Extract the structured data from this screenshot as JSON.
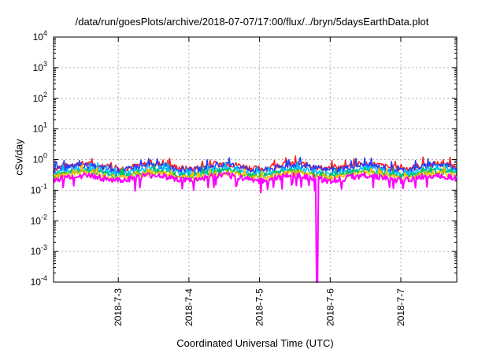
{
  "chart_data": {
    "type": "area",
    "title": "/data/run/goesPlots/archive/2018-07-07/17:00/flux/../bryn/5daysEarthData.plot",
    "xlabel": "Coordinated Universal Time (UTC)",
    "ylabel": "cSv/day",
    "yscale": "log",
    "ylim": [
      0.0001,
      10000
    ],
    "xlim": [
      "2018-07-02 02:00",
      "2018-07-07 19:00"
    ],
    "grid": true,
    "yticks": [
      {
        "base": "10",
        "exp": "-4"
      },
      {
        "base": "10",
        "exp": "-3"
      },
      {
        "base": "10",
        "exp": "-2"
      },
      {
        "base": "10",
        "exp": "-1"
      },
      {
        "base": "10",
        "exp": "0"
      },
      {
        "base": "10",
        "exp": "1"
      },
      {
        "base": "10",
        "exp": "2"
      },
      {
        "base": "10",
        "exp": "3"
      },
      {
        "base": "10",
        "exp": "4"
      }
    ],
    "xticks": [
      "2018-7-3",
      "2018-7-4",
      "2018-7-5",
      "2018-7-6",
      "2018-7-7"
    ],
    "series": [
      {
        "color": "#ff2020",
        "level": 0.62
      },
      {
        "color": "#2040ff",
        "level": 0.55
      },
      {
        "color": "#00c0ff",
        "level": 0.42
      },
      {
        "color": "#00c060",
        "level": 0.36
      },
      {
        "color": "#ffc000",
        "level": 0.31
      },
      {
        "color": "#ff00ff",
        "level": 0.26
      }
    ],
    "magenta_dip": {
      "time": "2018-07-05 19:40",
      "min": 0.0001
    }
  }
}
